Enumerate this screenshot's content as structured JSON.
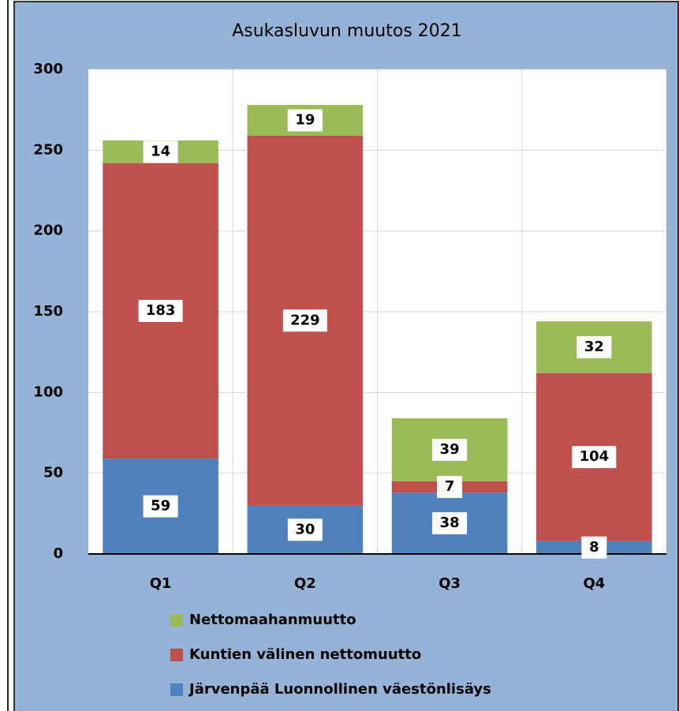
{
  "chart_data": {
    "type": "stacked_bar",
    "title": "Asukasluvun muutos 2021",
    "categories": [
      "Q1",
      "Q2",
      "Q3",
      "Q4"
    ],
    "series": [
      {
        "name": "Järvenpää Luonnollinen väestönlisäys",
        "color": "#4f81bd",
        "values": [
          59,
          30,
          38,
          8
        ]
      },
      {
        "name": "Kuntien välinen nettomuutto",
        "color": "#c0504d",
        "values": [
          183,
          229,
          7,
          104
        ]
      },
      {
        "name": "Nettomaahanmuutto",
        "color": "#9bbb59",
        "values": [
          14,
          19,
          39,
          32
        ]
      }
    ],
    "ylim": [
      0,
      300
    ],
    "yticks": [
      0,
      50,
      100,
      150,
      200,
      250,
      300
    ],
    "grid": true
  }
}
